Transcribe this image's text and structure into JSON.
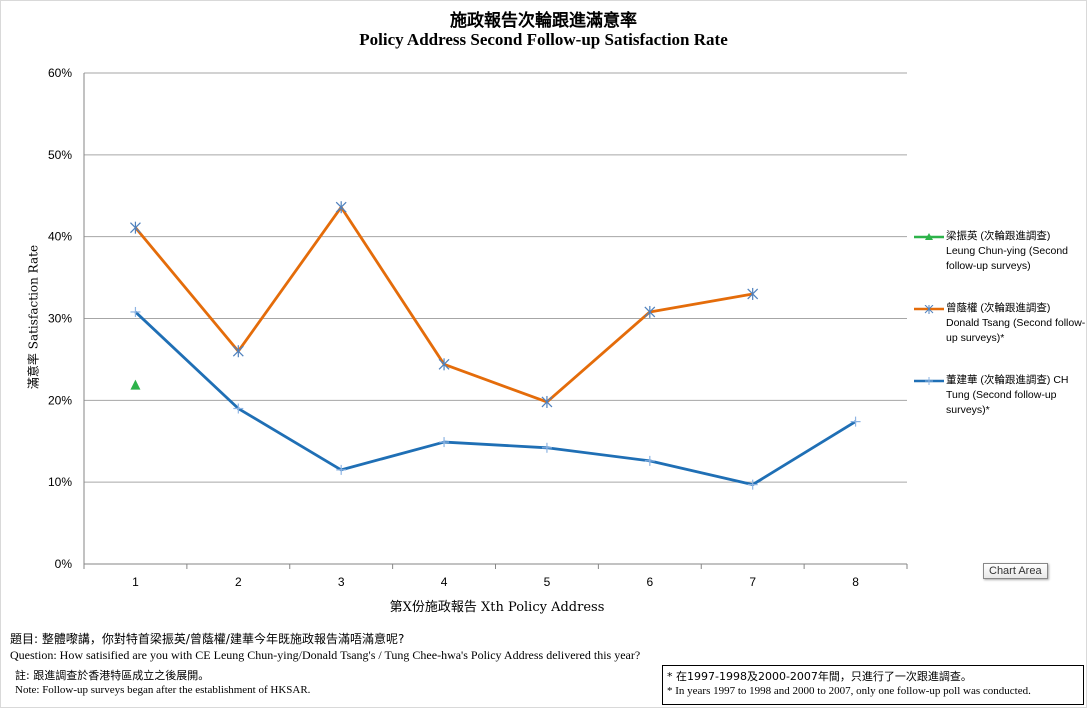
{
  "chart_data": {
    "type": "line",
    "title_zh": "施政報告次輪跟進滿意率",
    "title": "Policy Address Second Follow-up Satisfaction Rate",
    "xlabel": "第X份施政報告 Xth Policy Address",
    "ylabel": "滿意率 Satisfaction Rate",
    "x": [
      1,
      2,
      3,
      4,
      5,
      6,
      7,
      8
    ],
    "y_ticks": [
      "0%",
      "10%",
      "20%",
      "30%",
      "40%",
      "50%",
      "60%"
    ],
    "ylim": [
      0,
      60
    ],
    "grid": true,
    "legend_position": "right",
    "series": [
      {
        "name": "梁振英 (次輪跟進調查) Leung Chun-ying (Second follow-up surveys)",
        "legend_zh": "梁振英 (次輪跟進調查)",
        "legend_en": "Leung Chun-ying (Second follow-up surveys)",
        "color": "#2db34a",
        "marker": "triangle",
        "values": [
          21.8,
          null,
          null,
          null,
          null,
          null,
          null,
          null
        ]
      },
      {
        "name": "曾蔭權 (次輪跟進調查) Donald Tsang (Second follow-up surveys)*",
        "legend_zh": "曾蔭權 (次輪跟進調查)",
        "legend_en": "Donald Tsang (Second follow-up surveys)*",
        "color": "#e46c0a",
        "marker": "star",
        "values": [
          41.1,
          26.0,
          43.6,
          24.4,
          19.8,
          30.8,
          33.0,
          null
        ]
      },
      {
        "name": "董建華 (次輪跟進調查) CH Tung (Second follow-up surveys)*",
        "legend_zh": "董建華 (次輪跟進調查) CH",
        "legend_en": "Tung (Second follow-up surveys)*",
        "color": "#1f6fb5",
        "marker": "plus",
        "values": [
          30.8,
          19.0,
          11.5,
          14.9,
          14.2,
          12.6,
          9.7,
          17.4
        ]
      }
    ]
  },
  "chart_area_tag": "Chart Area",
  "question": {
    "zh": "題目: 整體嚟講，你對特首梁振英/曾蔭權/建華今年既施政報告滿唔滿意呢?",
    "en": "Question: How satisified are you with CE Leung Chun-ying/Donald Tsang's / Tung Chee-hwa's Policy Address delivered this year?"
  },
  "note": {
    "zh": "註: 跟進調查於香港特區成立之後展開。",
    "en": "Note: Follow-up surveys began after the establishment of HKSAR."
  },
  "footnote": {
    "zh": "* 在1997-1998及2000-2007年間，只進行了一次跟進調查。",
    "en": "* In years 1997 to 1998 and 2000 to 2007, only one follow-up poll was conducted."
  }
}
